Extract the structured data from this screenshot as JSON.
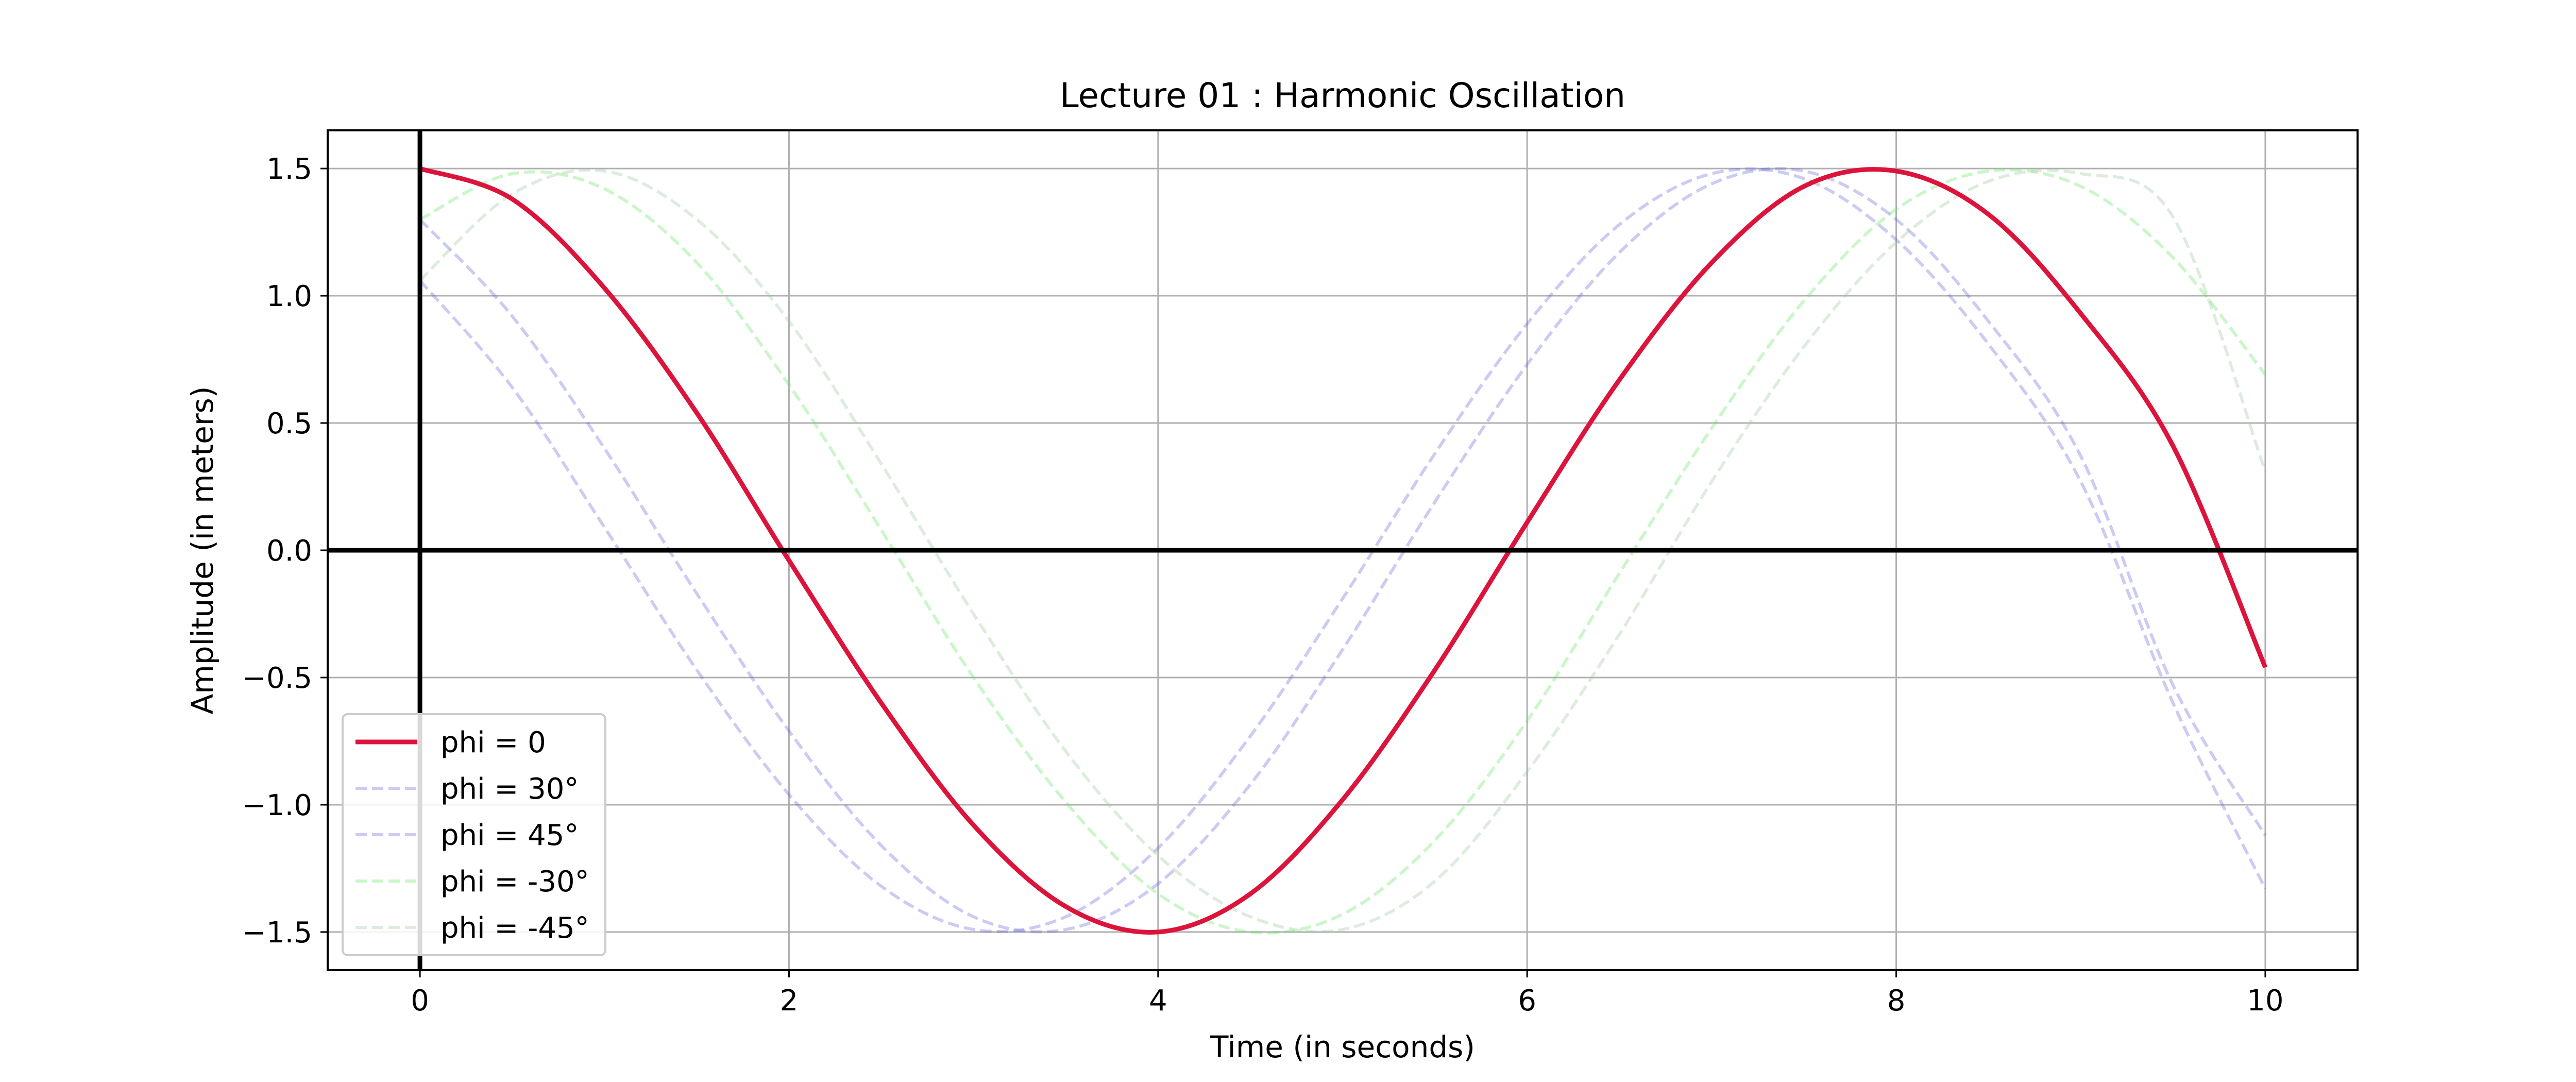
{
  "chart_data": {
    "type": "line",
    "title": "Lecture 01 : Harmonic Oscillation",
    "xlabel": "Time (in seconds)",
    "ylabel": "Amplitude (in meters)",
    "xlim": [
      -0.5,
      10.5
    ],
    "ylim": [
      -1.65,
      1.65
    ],
    "x_ticks": [
      0,
      2,
      4,
      6,
      8,
      10
    ],
    "y_ticks": [
      -1.5,
      -1.0,
      -0.5,
      0.0,
      0.5,
      1.0,
      1.5
    ],
    "x_tick_labels": [
      "0",
      "2",
      "4",
      "6",
      "8",
      "10"
    ],
    "y_tick_labels": [
      "−1.5",
      "−1.0",
      "−0.5",
      "0.0",
      "0.5",
      "1.0",
      "1.5"
    ],
    "grid": true,
    "legend_position": "lower-left",
    "reference_lines": {
      "x": 0,
      "y": 0,
      "color": "#000000"
    },
    "x": [
      0.0,
      0.5,
      1.0,
      1.5,
      2.0,
      2.5,
      3.0,
      3.5,
      4.0,
      4.5,
      5.0,
      5.5,
      6.0,
      6.5,
      7.0,
      7.5,
      8.0,
      8.5,
      9.0,
      9.5,
      10.0
    ],
    "series": [
      {
        "name": "phi = 0",
        "color": "#dc143c",
        "style": "solid",
        "opacity": 1.0,
        "values": [
          1.5,
          1.38,
          1.03,
          0.54,
          -0.04,
          -0.6,
          -1.08,
          -1.4,
          -1.5,
          -1.35,
          -0.98,
          -0.47,
          0.11,
          0.67,
          1.13,
          1.43,
          1.49,
          1.32,
          0.93,
          0.41,
          -0.46
        ]
      },
      {
        "name": "phi = 30°",
        "color": "#6a6adc",
        "style": "dashed",
        "opacity": 0.35,
        "values": [
          1.3,
          0.92,
          0.4,
          -0.17,
          -0.71,
          -1.16,
          -1.44,
          -1.49,
          -1.31,
          -0.92,
          -0.39,
          0.19,
          0.73,
          1.17,
          1.44,
          1.49,
          1.3,
          0.9,
          0.37,
          -0.53,
          -1.12
        ]
      },
      {
        "name": "phi = 45°",
        "color": "#6a6adc",
        "style": "dashed",
        "opacity": 0.35,
        "values": [
          1.06,
          0.64,
          0.09,
          -0.47,
          -0.96,
          -1.32,
          -1.49,
          -1.44,
          -1.17,
          -0.73,
          -0.19,
          0.38,
          0.89,
          1.28,
          1.48,
          1.46,
          1.22,
          0.81,
          0.27,
          -0.6,
          -1.33
        ]
      },
      {
        "name": "phi = -30°",
        "color": "#66e466",
        "style": "dashed",
        "opacity": 0.35,
        "values": [
          1.3,
          1.48,
          1.42,
          1.13,
          0.65,
          0.08,
          -0.5,
          -0.99,
          -1.35,
          -1.5,
          -1.43,
          -1.14,
          -0.67,
          -0.09,
          0.48,
          0.98,
          1.34,
          1.49,
          1.43,
          1.15,
          0.69
        ]
      },
      {
        "name": "phi = -45°",
        "color": "#a0c8a0",
        "style": "dashed",
        "opacity": 0.35,
        "values": [
          1.06,
          1.4,
          1.49,
          1.3,
          0.9,
          0.34,
          -0.25,
          -0.79,
          -1.2,
          -1.44,
          -1.49,
          -1.3,
          -0.87,
          -0.33,
          0.27,
          0.8,
          1.21,
          1.45,
          1.48,
          1.31,
          0.31
        ]
      }
    ]
  }
}
